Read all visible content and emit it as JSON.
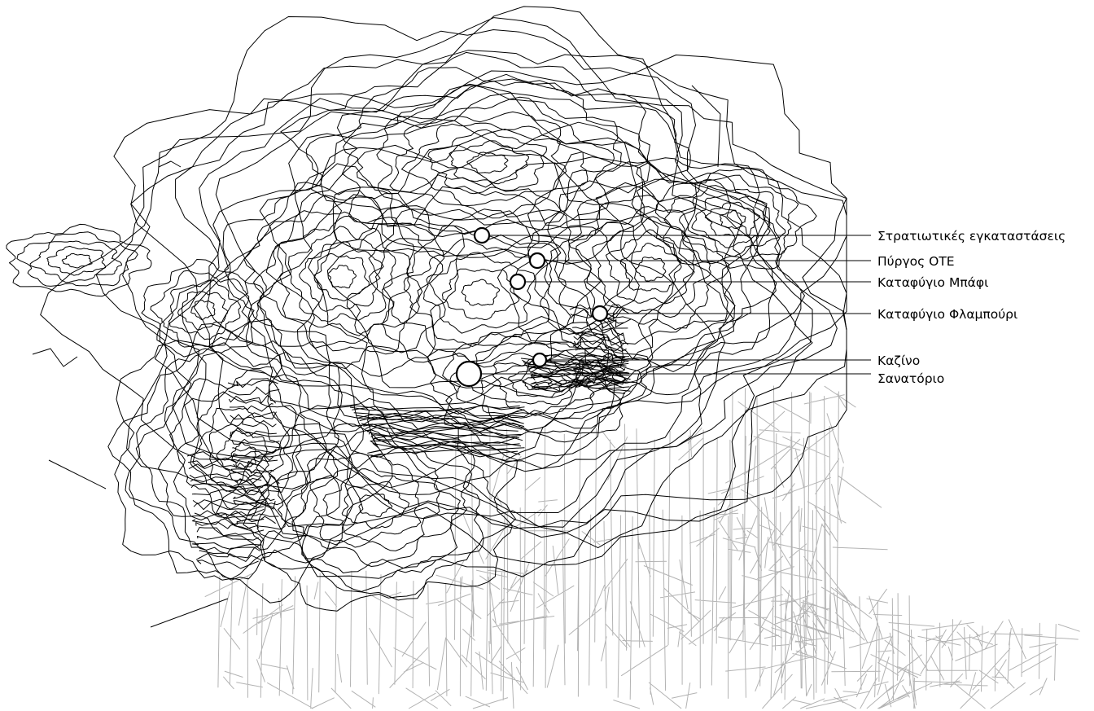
{
  "map": {
    "colors": {
      "contour": "#000000",
      "streets": "#b3b3b3",
      "background": "#ffffff",
      "marker_fill": "#ffffff"
    },
    "places": [
      {
        "id": "military",
        "label": "Στρατιωτικές εγκαταστάσεις",
        "size": "small"
      },
      {
        "id": "ote",
        "label": "Πύργος ΟΤΕ",
        "size": "small"
      },
      {
        "id": "bafi",
        "label": "Καταφύγιο Μπάφι",
        "size": "small"
      },
      {
        "id": "flampouri",
        "label": "Καταφύγιο Φλαμπούρι",
        "size": "small"
      },
      {
        "id": "casino",
        "label": "Καζίνο",
        "size": "small"
      },
      {
        "id": "sanatorium",
        "label": "Σανατόριο",
        "size": "large"
      }
    ]
  }
}
